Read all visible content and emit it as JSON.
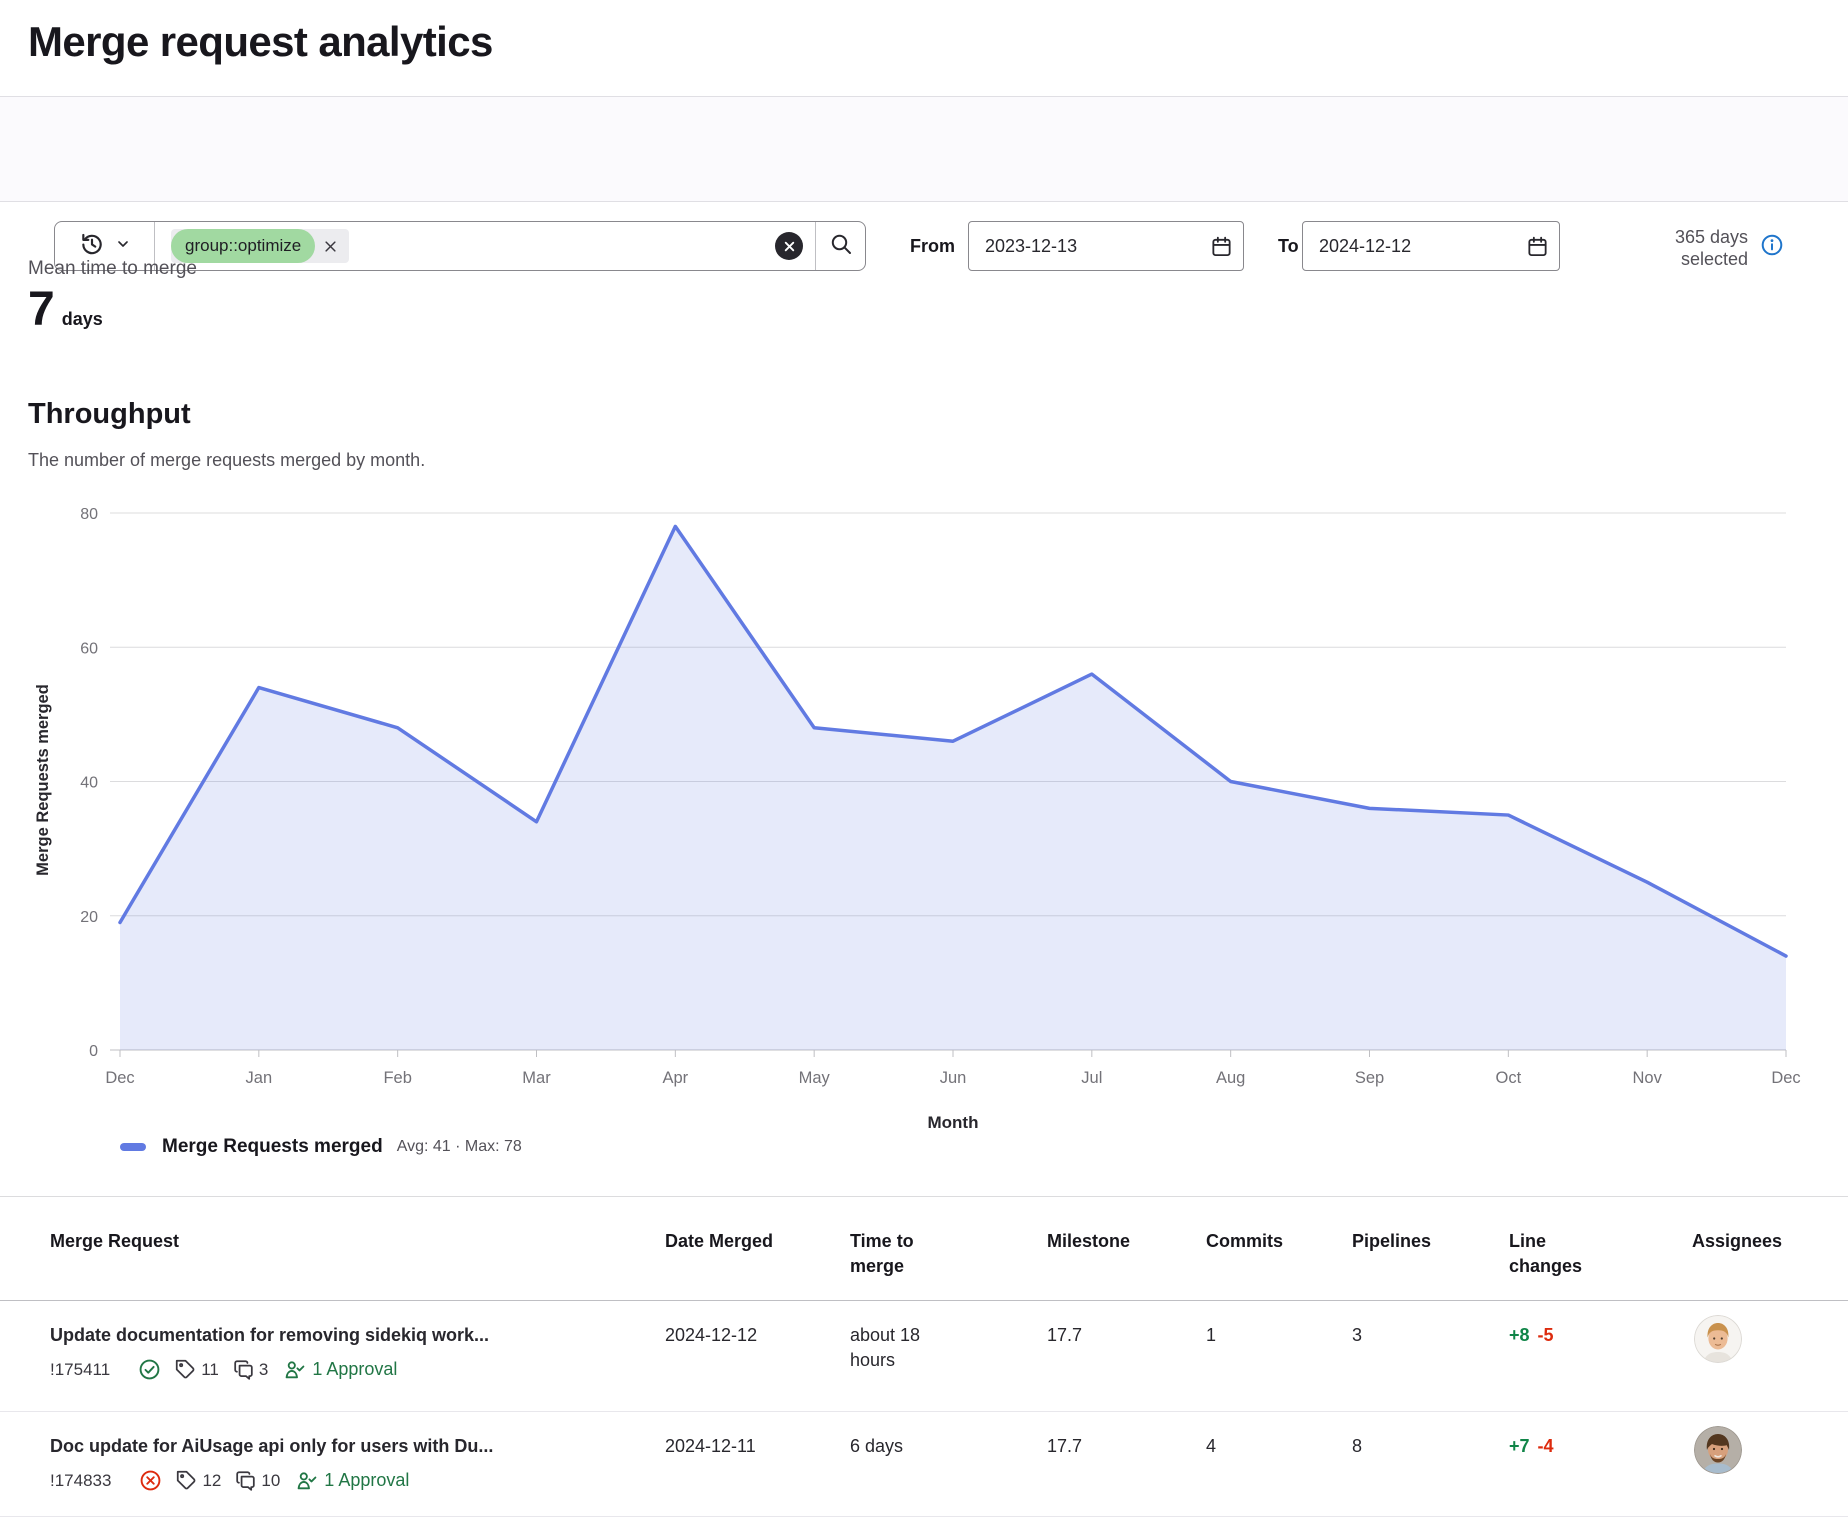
{
  "page": {
    "title": "Merge request analytics"
  },
  "filters": {
    "token": {
      "label": "group::optimize"
    },
    "from": {
      "label": "From",
      "value": "2023-12-13"
    },
    "to": {
      "label": "To",
      "value": "2024-12-12"
    },
    "range_note_line1": "365 days",
    "range_note_line2": "selected"
  },
  "metric": {
    "label": "Mean time to merge",
    "value": "7",
    "unit": "days"
  },
  "section": {
    "title": "Throughput",
    "description": "The number of merge requests merged by month."
  },
  "chart_data": {
    "type": "area",
    "categories": [
      "Dec",
      "Jan",
      "Feb",
      "Mar",
      "Apr",
      "May",
      "Jun",
      "Jul",
      "Aug",
      "Sep",
      "Oct",
      "Nov",
      "Dec"
    ],
    "values": [
      19,
      54,
      48,
      34,
      78,
      48,
      46,
      56,
      40,
      36,
      35,
      25,
      14
    ],
    "title": "Throughput",
    "xlabel": "Month",
    "ylabel": "Merge Requests merged",
    "series_name": "Merge Requests merged",
    "legend_stats": "Avg: 41 · Max: 78",
    "ylim": [
      0,
      80
    ],
    "yticks": [
      0,
      20,
      40,
      60,
      80
    ],
    "grid": true,
    "legend_position": "bottom-left",
    "line_color": "#617ae2",
    "fill_color": "rgba(97,122,226,0.16)"
  },
  "table": {
    "headers": [
      "Merge Request",
      "Date Merged",
      "Time to merge",
      "Milestone",
      "Commits",
      "Pipelines",
      "Line changes",
      "Assignees"
    ],
    "rows": [
      {
        "title": "Update documentation for removing sidekiq work...",
        "id": "!175411",
        "status": "merged",
        "labels_count": "11",
        "comments_count": "3",
        "approvals": "1 Approval",
        "date_merged": "2024-12-12",
        "time_to_merge": "about 18 hours",
        "milestone": "17.7",
        "commits": "1",
        "pipelines": "3",
        "additions": "+8",
        "deletions": "-5"
      },
      {
        "title": "Doc update for AiUsage api only for users with Du...",
        "id": "!174833",
        "status": "closed",
        "labels_count": "12",
        "comments_count": "10",
        "approvals": "1 Approval",
        "date_merged": "2024-12-11",
        "time_to_merge": "6 days",
        "milestone": "17.7",
        "commits": "4",
        "pipelines": "8",
        "additions": "+7",
        "deletions": "-4"
      }
    ]
  },
  "colors": {
    "accent_blue": "#617ae2",
    "info_blue": "#1f75cb",
    "success_green": "#217645",
    "additions_green": "#108548",
    "deletions_red": "#dd2b0e",
    "token_green": "#a1d9a1"
  }
}
